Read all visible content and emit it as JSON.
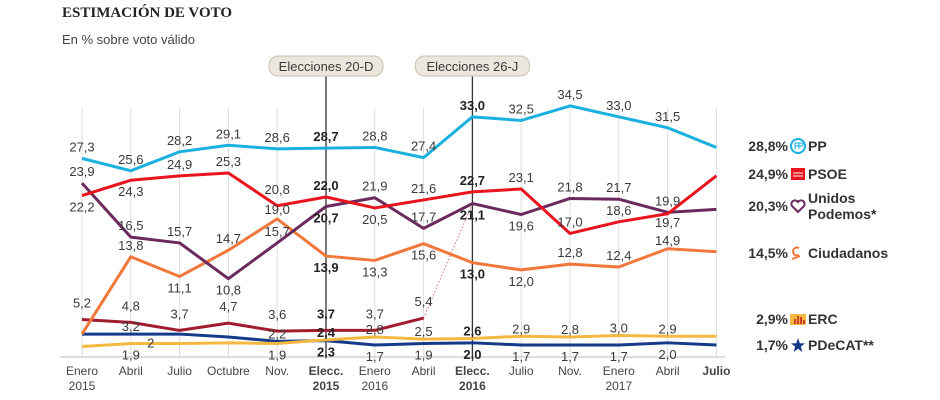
{
  "title": "ESTIMACIÓN DE VOTO",
  "subtitle": "En % sobre voto válido",
  "chart_data": {
    "type": "line",
    "title": "ESTIMACIÓN DE VOTO",
    "subtitle": "En % sobre voto válido",
    "categories": [
      [
        "Enero",
        "2015"
      ],
      [
        "Abril",
        ""
      ],
      [
        "Julio",
        ""
      ],
      [
        "Octubre",
        ""
      ],
      [
        "Nov.",
        ""
      ],
      [
        "Elecc.",
        "2015"
      ],
      [
        "Enero",
        "2016"
      ],
      [
        "Abril",
        ""
      ],
      [
        "Elecc.",
        "2016"
      ],
      [
        "Julio",
        ""
      ],
      [
        "Nov.",
        ""
      ],
      [
        "Enero",
        "2017"
      ],
      [
        "Abril",
        ""
      ],
      [
        "Julio",
        ""
      ]
    ],
    "bold_categories": [
      5,
      8,
      13
    ],
    "annotations": [
      {
        "label": "Elecciones 20-D",
        "category_index": 5
      },
      {
        "label": "Elecciones 26-J",
        "category_index": 8
      }
    ],
    "ylim": [
      0,
      35
    ],
    "grid": "vertical",
    "legend": "right",
    "series": [
      {
        "name": "PP",
        "final": "28,8%",
        "color": "#1ab0e0",
        "icon": "pp-logo-icon",
        "values": [
          27.3,
          25.6,
          28.2,
          29.1,
          28.6,
          28.7,
          28.8,
          27.4,
          33.0,
          32.5,
          34.5,
          33.0,
          31.5,
          28.8
        ],
        "labels": [
          "27,3",
          "25,6",
          "28,2",
          "29,1",
          "28,6",
          "28,7",
          "28,8",
          "27,4",
          "33,0",
          "32,5",
          "34,5",
          "33,0",
          "31,5",
          null
        ]
      },
      {
        "name": "PSOE",
        "final": "24,9%",
        "color": "#e8141e",
        "icon": "psoe-logo-icon",
        "values": [
          22.2,
          24.3,
          24.9,
          25.3,
          20.8,
          22.0,
          20.5,
          21.6,
          22.7,
          23.1,
          17.0,
          18.6,
          19.7,
          24.9
        ],
        "labels": [
          "22,2",
          "24,3",
          "24,9",
          "25,3",
          "20,8",
          "22,0",
          "20,5",
          "21,6",
          "22,7",
          "23,1",
          "17,0",
          "18,6",
          "19,7",
          null
        ]
      },
      {
        "name": "Unidos Podemos*",
        "final": "20,3%",
        "color": "#6a2a5e",
        "icon": "podemos-heart-icon",
        "values": [
          23.9,
          16.5,
          15.7,
          10.8,
          15.7,
          20.7,
          21.9,
          17.7,
          21.1,
          19.6,
          21.8,
          21.7,
          19.9,
          20.3
        ],
        "labels": [
          "23,9",
          "16,5",
          "15,7",
          "10,8",
          "15,7",
          "20,7",
          "21,9",
          "17,7",
          "21,1",
          "19,6",
          "21,8",
          "21,7",
          "19,9",
          null
        ]
      },
      {
        "name": "Ciudadanos",
        "final": "14,5%",
        "color": "#f2773a",
        "icon": "cs-logo-icon",
        "values": [
          3.2,
          13.8,
          11.1,
          14.7,
          19.0,
          13.9,
          13.3,
          15.6,
          13.0,
          12.0,
          12.8,
          12.4,
          14.9,
          14.5
        ],
        "labels": [
          null,
          "13,8",
          "11,1",
          "14,7",
          "19,0",
          "13,9",
          "13,3",
          "15,6",
          "13,0",
          "12,0",
          "12,8",
          "12,4",
          "14,9",
          null
        ]
      },
      {
        "name": "",
        "final": "",
        "color": "#a01c2e",
        "icon": "",
        "values": [
          5.2,
          4.8,
          3.7,
          4.7,
          3.6,
          3.7,
          3.7,
          5.4,
          null,
          null,
          null,
          null,
          null,
          null
        ],
        "labels": [
          "5,2",
          "4,8",
          "3,7",
          "4,7",
          "3,6",
          "3,7",
          "3,7",
          "5,4",
          null,
          null,
          null,
          null,
          null,
          null
        ]
      },
      {
        "name": "ERC",
        "final": "2,9%",
        "color": "#f5b942",
        "icon": "erc-logo-icon",
        "values": [
          1.5,
          1.9,
          1.9,
          2.0,
          1.9,
          2.4,
          2.8,
          2.5,
          2.6,
          2.9,
          2.8,
          3.0,
          2.9,
          2.9
        ],
        "labels": [
          null,
          "1,9",
          null,
          null,
          "1,9",
          "2,4",
          "2,8",
          "2,5",
          "2,6",
          "2,9",
          "2,8",
          "3,0",
          "2,9",
          null
        ]
      },
      {
        "name": "PDeCAT**",
        "final": "1,7%",
        "color": "#153a8a",
        "icon": "pdecat-star-icon",
        "values": [
          3.2,
          3.2,
          3.2,
          2.8,
          2.2,
          2.3,
          1.7,
          1.9,
          2.0,
          1.7,
          1.7,
          1.7,
          2.0,
          1.7
        ],
        "labels": [
          null,
          "3,2",
          null,
          null,
          "2,2",
          "2,3",
          "1,7",
          "1,9",
          "2,0",
          "1,7",
          "1,7",
          "1,7",
          "2,0",
          null
        ]
      }
    ],
    "extra_labels": [
      "2"
    ]
  }
}
